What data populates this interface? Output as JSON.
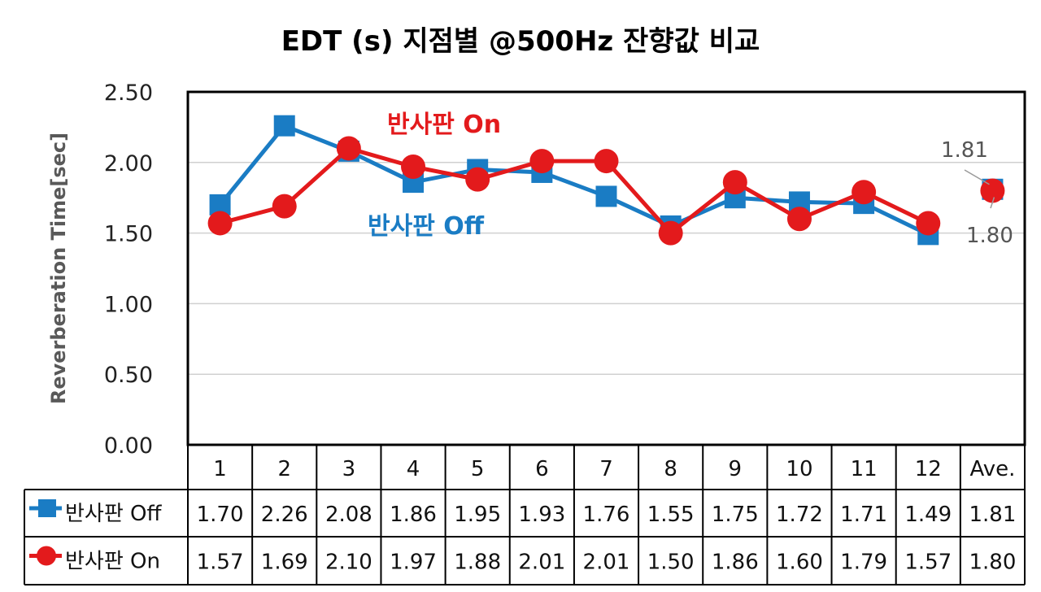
{
  "chart_data": {
    "type": "line",
    "title": "EDT (s) 지점별 @500Hz 잔향값 비교",
    "ylabel": "Reverberation Time[sec]",
    "xlabel": "",
    "ylim": [
      0,
      2.5
    ],
    "yticks": [
      "0.00",
      "0.50",
      "1.00",
      "1.50",
      "2.00",
      "2.50"
    ],
    "ytick_values": [
      0,
      0.5,
      1.0,
      1.5,
      2.0,
      2.5
    ],
    "categories": [
      "1",
      "2",
      "3",
      "4",
      "5",
      "6",
      "7",
      "8",
      "9",
      "10",
      "11",
      "12",
      "Ave."
    ],
    "grid": true,
    "legend": "data-table",
    "series": [
      {
        "name": "반사판 Off",
        "color": "#1a7cc4",
        "marker": "square",
        "values": [
          1.7,
          2.26,
          2.08,
          1.86,
          1.95,
          1.93,
          1.76,
          1.55,
          1.75,
          1.72,
          1.71,
          1.49,
          1.81
        ],
        "table_values": [
          "1.70",
          "2.26",
          "2.08",
          "1.86",
          "1.95",
          "1.93",
          "1.76",
          "1.55",
          "1.75",
          "1.72",
          "1.71",
          "1.49",
          "1.81"
        ]
      },
      {
        "name": "반사판 On",
        "color": "#e31a1c",
        "marker": "circle",
        "values": [
          1.57,
          1.69,
          2.1,
          1.97,
          1.88,
          2.01,
          2.01,
          1.5,
          1.86,
          1.6,
          1.79,
          1.57,
          1.8
        ],
        "table_values": [
          "1.57",
          "1.69",
          "2.10",
          "1.97",
          "1.88",
          "2.01",
          "2.01",
          "1.50",
          "1.86",
          "1.60",
          "1.79",
          "1.57",
          "1.80"
        ]
      }
    ],
    "annotations": [
      {
        "text": "반사판 On",
        "series": 1
      },
      {
        "text": "반사판 Off",
        "series": 0
      }
    ],
    "ave_labels": [
      "1.81",
      "1.80"
    ]
  }
}
